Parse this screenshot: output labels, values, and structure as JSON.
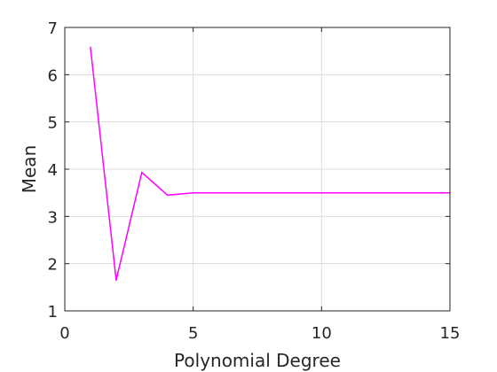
{
  "chart_data": {
    "type": "line",
    "xlabel": "Polynomial Degree",
    "ylabel": "Mean",
    "xlim": [
      0,
      15
    ],
    "ylim": [
      1,
      7
    ],
    "xticks": [
      0,
      5,
      10,
      15
    ],
    "yticks": [
      1,
      2,
      3,
      4,
      5,
      6,
      7
    ],
    "grid": true,
    "series": [
      {
        "color": "#ff00ff",
        "x": [
          1,
          2,
          3,
          4,
          5,
          6,
          7,
          8,
          9,
          10,
          11,
          12,
          13,
          14,
          15
        ],
        "y": [
          6.58,
          1.65,
          3.93,
          3.45,
          3.5,
          3.5,
          3.5,
          3.5,
          3.5,
          3.5,
          3.5,
          3.5,
          3.5,
          3.5,
          3.5
        ]
      }
    ]
  }
}
